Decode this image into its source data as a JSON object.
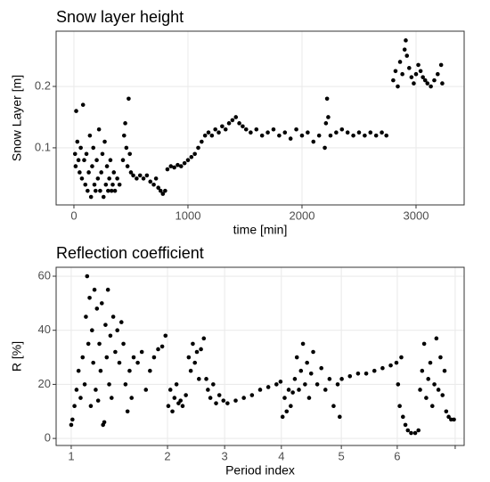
{
  "chart_data": [
    {
      "type": "scatter",
      "title": "Snow layer height",
      "x_label": "time [min]",
      "y_label": "Snow Layer [m]",
      "color": "#000000",
      "grid": true,
      "xlim": [
        -156,
        3422
      ],
      "ylim": [
        0.007,
        0.29
      ],
      "xticks": [
        0,
        1000,
        2000,
        3000
      ],
      "yticks": [
        0.1,
        0.2
      ],
      "x": [
        10,
        15,
        20,
        30,
        40,
        50,
        60,
        70,
        80,
        90,
        100,
        110,
        120,
        130,
        140,
        150,
        160,
        170,
        180,
        190,
        200,
        210,
        220,
        230,
        240,
        250,
        260,
        270,
        280,
        290,
        300,
        310,
        320,
        330,
        340,
        350,
        360,
        380,
        400,
        430,
        440,
        450,
        460,
        470,
        480,
        490,
        500,
        520,
        550,
        580,
        610,
        640,
        670,
        700,
        720,
        740,
        760,
        780,
        800,
        820,
        850,
        880,
        910,
        940,
        970,
        1000,
        1030,
        1060,
        1090,
        1120,
        1150,
        1180,
        1210,
        1240,
        1270,
        1300,
        1330,
        1360,
        1390,
        1420,
        1450,
        1480,
        1510,
        1550,
        1600,
        1650,
        1700,
        1750,
        1800,
        1850,
        1900,
        1950,
        2000,
        2050,
        2100,
        2150,
        2200,
        2210,
        2220,
        2230,
        2250,
        2300,
        2350,
        2400,
        2450,
        2500,
        2550,
        2600,
        2650,
        2700,
        2740,
        2800,
        2820,
        2840,
        2860,
        2880,
        2900,
        2910,
        2920,
        2940,
        2960,
        2980,
        3000,
        3020,
        3040,
        3060,
        3080,
        3100,
        3130,
        3160,
        3190,
        3220,
        3230
      ],
      "values": [
        0.09,
        0.07,
        0.16,
        0.11,
        0.08,
        0.06,
        0.1,
        0.05,
        0.17,
        0.08,
        0.04,
        0.09,
        0.03,
        0.06,
        0.12,
        0.02,
        0.07,
        0.1,
        0.04,
        0.03,
        0.08,
        0.05,
        0.13,
        0.03,
        0.06,
        0.09,
        0.02,
        0.11,
        0.04,
        0.07,
        0.03,
        0.05,
        0.08,
        0.03,
        0.04,
        0.06,
        0.03,
        0.05,
        0.04,
        0.08,
        0.12,
        0.14,
        0.1,
        0.07,
        0.18,
        0.09,
        0.06,
        0.055,
        0.05,
        0.055,
        0.05,
        0.055,
        0.045,
        0.04,
        0.05,
        0.035,
        0.03,
        0.025,
        0.03,
        0.065,
        0.07,
        0.068,
        0.072,
        0.07,
        0.075,
        0.08,
        0.085,
        0.09,
        0.1,
        0.11,
        0.12,
        0.125,
        0.12,
        0.13,
        0.125,
        0.135,
        0.13,
        0.14,
        0.145,
        0.15,
        0.14,
        0.135,
        0.13,
        0.125,
        0.13,
        0.12,
        0.125,
        0.13,
        0.12,
        0.125,
        0.115,
        0.13,
        0.12,
        0.125,
        0.11,
        0.12,
        0.1,
        0.14,
        0.18,
        0.15,
        0.12,
        0.125,
        0.13,
        0.125,
        0.12,
        0.125,
        0.12,
        0.125,
        0.12,
        0.125,
        0.12,
        0.21,
        0.225,
        0.2,
        0.24,
        0.22,
        0.26,
        0.275,
        0.25,
        0.23,
        0.215,
        0.205,
        0.22,
        0.235,
        0.225,
        0.215,
        0.21,
        0.205,
        0.2,
        0.21,
        0.22,
        0.235,
        0.205
      ]
    },
    {
      "type": "scatter",
      "title": "Reflection coefficient",
      "x_label": "Period index",
      "y_label": "R [%]",
      "color": "#000000",
      "grid": true,
      "xlim": [
        0,
        1000
      ],
      "ylim": [
        -2.6,
        63.3
      ],
      "xticks": [
        {
          "value": 37,
          "label": "1"
        },
        {
          "value": 273,
          "label": "2"
        },
        {
          "value": 413,
          "label": "3"
        },
        {
          "value": 552,
          "label": "4"
        },
        {
          "value": 699,
          "label": "5"
        },
        {
          "value": 836,
          "label": "6"
        },
        {
          "value": 978,
          "label": null
        }
      ],
      "yticks": [
        0,
        20,
        40,
        60
      ],
      "x": [
        37,
        40,
        45,
        50,
        55,
        60,
        65,
        70,
        73,
        76,
        79,
        82,
        85,
        88,
        91,
        94,
        97,
        100,
        103,
        106,
        109,
        112,
        115,
        118,
        121,
        124,
        127,
        130,
        133,
        136,
        140,
        145,
        150,
        155,
        160,
        165,
        170,
        175,
        180,
        185,
        190,
        200,
        210,
        220,
        230,
        240,
        250,
        260,
        268,
        275,
        280,
        285,
        290,
        295,
        300,
        305,
        310,
        318,
        325,
        330,
        335,
        340,
        345,
        350,
        355,
        362,
        368,
        372,
        378,
        385,
        392,
        400,
        410,
        420,
        440,
        460,
        480,
        500,
        520,
        540,
        550,
        555,
        560,
        565,
        570,
        575,
        580,
        585,
        590,
        595,
        600,
        605,
        610,
        615,
        620,
        625,
        630,
        640,
        650,
        660,
        670,
        680,
        690,
        695,
        700,
        720,
        740,
        760,
        780,
        800,
        820,
        834,
        838,
        842,
        846,
        850,
        856,
        862,
        870,
        880,
        888,
        892,
        897,
        902,
        907,
        912,
        917,
        922,
        927,
        932,
        937,
        942,
        947,
        952,
        956,
        962,
        968,
        975
      ],
      "values": [
        5,
        7,
        12,
        18,
        25,
        15,
        30,
        20,
        45,
        60,
        35,
        52,
        12,
        40,
        28,
        55,
        18,
        48,
        14,
        35,
        25,
        50,
        5,
        6,
        42,
        30,
        55,
        20,
        38,
        15,
        45,
        32,
        40,
        28,
        43,
        35,
        20,
        10,
        25,
        15,
        30,
        28,
        32,
        18,
        25,
        30,
        33,
        34,
        38,
        12,
        18,
        10,
        15,
        20,
        13,
        14,
        12,
        16,
        30,
        25,
        35,
        28,
        32,
        22,
        33,
        37,
        22,
        18,
        15,
        20,
        13,
        16,
        14,
        13,
        14,
        15,
        16,
        18,
        19,
        20,
        21,
        8,
        15,
        10,
        18,
        12,
        17,
        22,
        30,
        18,
        25,
        35,
        20,
        28,
        15,
        24,
        32,
        20,
        26,
        18,
        22,
        12,
        20,
        8,
        22,
        23,
        24,
        24,
        25,
        26,
        27,
        28,
        20,
        12,
        30,
        8,
        5,
        3,
        2,
        2,
        3,
        18,
        25,
        35,
        15,
        22,
        28,
        12,
        20,
        37,
        18,
        30,
        16,
        25,
        10,
        8,
        7,
        7
      ]
    }
  ]
}
